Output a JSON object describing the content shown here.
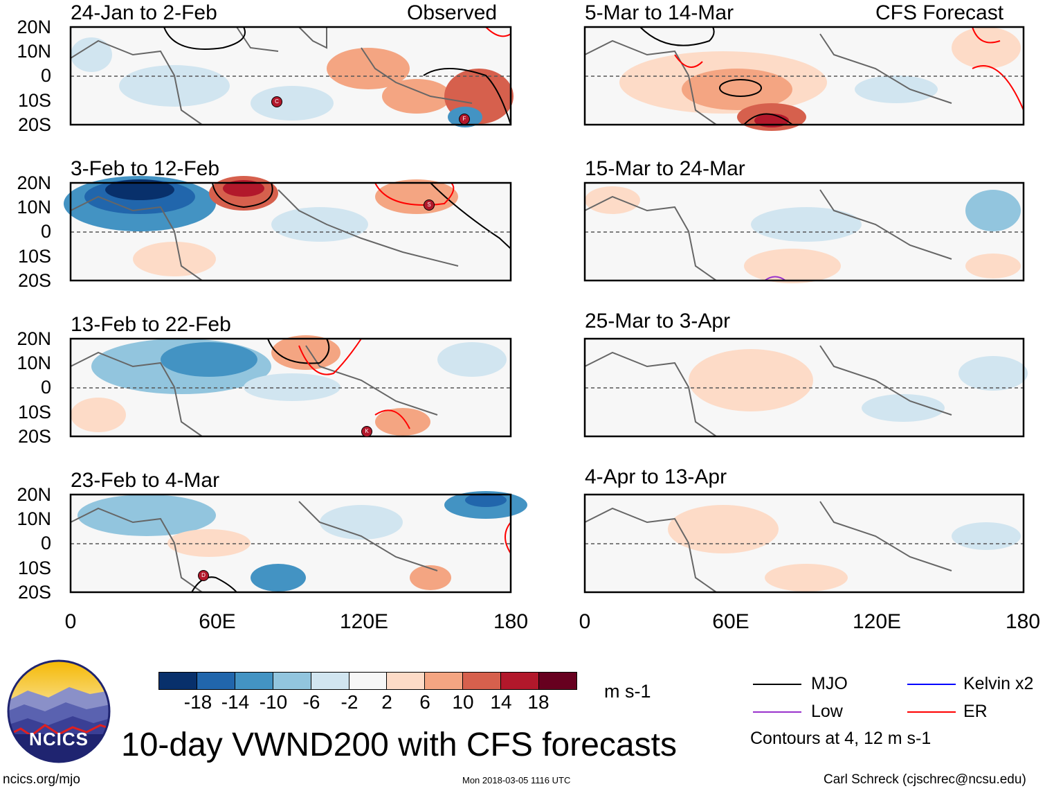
{
  "panels": [
    {
      "title": "24-Jan to 2-Feb",
      "tag": "Observed",
      "section": "observed"
    },
    {
      "title": "3-Feb to 12-Feb",
      "tag": "",
      "section": "observed"
    },
    {
      "title": "13-Feb to 22-Feb",
      "tag": "",
      "section": "observed"
    },
    {
      "title": "23-Feb to 4-Mar",
      "tag": "",
      "section": "observed"
    },
    {
      "title": "5-Mar to 14-Mar",
      "tag": "CFS Forecast",
      "section": "forecast"
    },
    {
      "title": "15-Mar to 24-Mar",
      "tag": "",
      "section": "forecast"
    },
    {
      "title": "25-Mar to 3-Apr",
      "tag": "",
      "section": "forecast"
    },
    {
      "title": "4-Apr to 13-Apr",
      "tag": "",
      "section": "forecast"
    }
  ],
  "lat_labels": [
    "20N",
    "10N",
    "0",
    "10S",
    "20S"
  ],
  "lon_labels": [
    "0",
    "60E",
    "120E",
    "180"
  ],
  "storm_markers": [
    {
      "panel": 0,
      "letter": "C"
    },
    {
      "panel": 0,
      "letter": "F"
    },
    {
      "panel": 1,
      "letter": "S"
    },
    {
      "panel": 2,
      "letter": "K"
    },
    {
      "panel": 3,
      "letter": "D"
    }
  ],
  "colorbar": {
    "colors": [
      "#08306b",
      "#2166ac",
      "#4393c3",
      "#92c5de",
      "#d1e5f0",
      "#f7f7f7",
      "#fddbc7",
      "#f4a582",
      "#d6604d",
      "#b2182b",
      "#67001f"
    ],
    "labels": [
      "-18",
      "-14",
      "-10",
      "-6",
      "-2",
      "2",
      "6",
      "10",
      "14",
      "18"
    ],
    "units": "m s-1"
  },
  "legend": {
    "items": [
      {
        "label": "MJO",
        "color": "#000000"
      },
      {
        "label": "Kelvin x2",
        "color": "#0000ff"
      },
      {
        "label": "Low",
        "color": "#9932cc"
      },
      {
        "label": "ER",
        "color": "#ff0000"
      }
    ],
    "note": "Contours at 4, 12 m s-1"
  },
  "logo_text": "NCICS",
  "main_title": "10-day VWND200 with CFS forecasts",
  "footer": {
    "left": "ncics.org/mjo",
    "center": "Mon 2018-03-05 1116 UTC",
    "right": "Carl Schreck (cjschrec@ncsu.edu)"
  }
}
